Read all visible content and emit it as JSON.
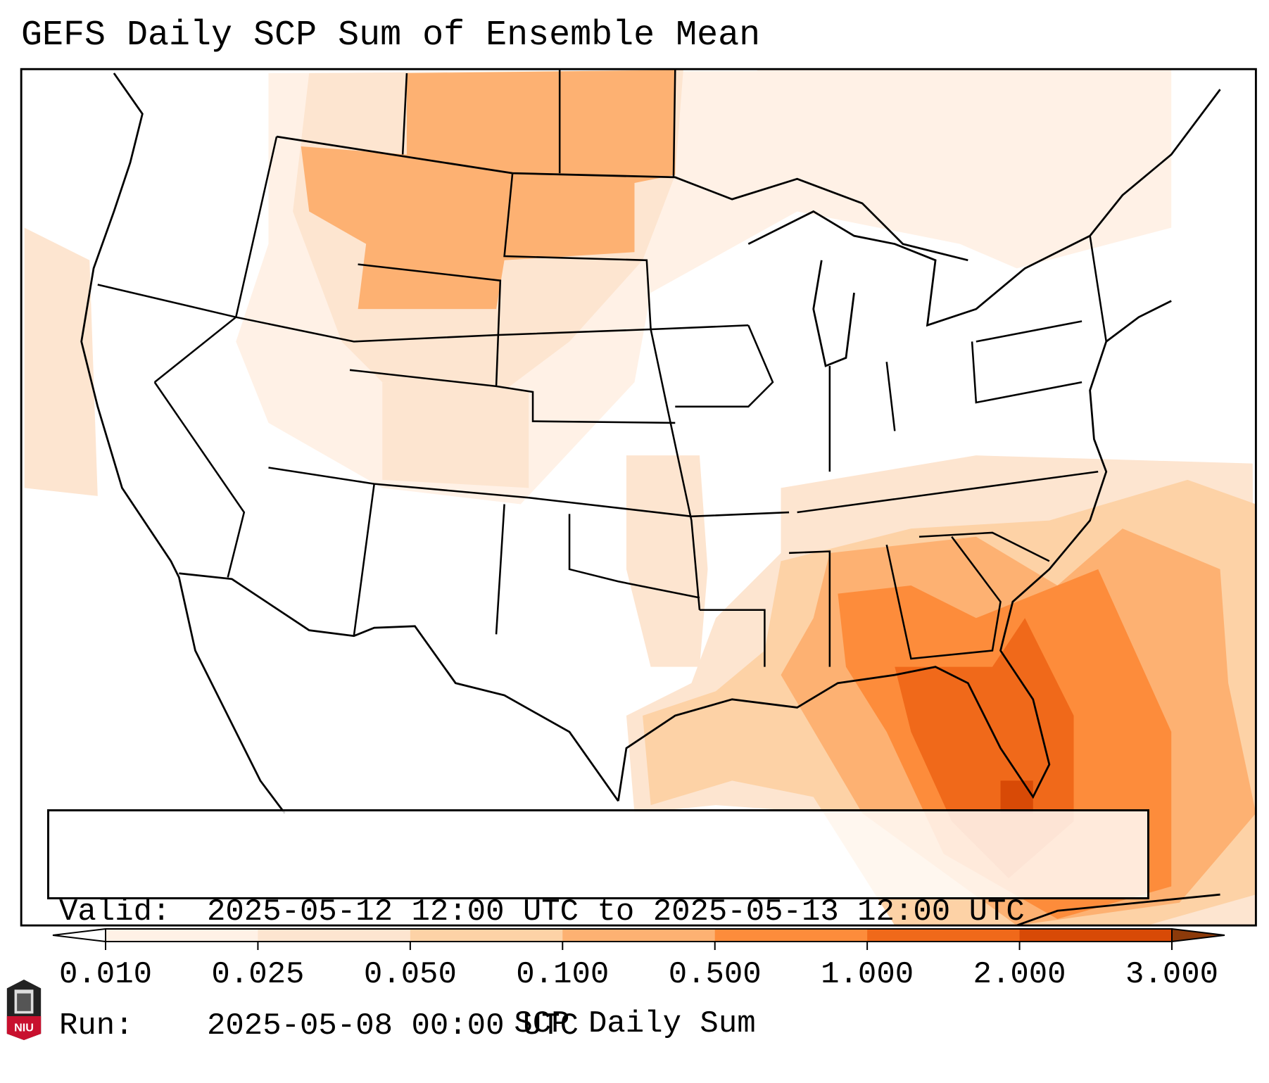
{
  "title": "GEFS Daily SCP Sum of Ensemble Mean",
  "info": {
    "valid_label": "Valid:",
    "valid_value": "2025-05-12 12:00 UTC to 2025-05-13 12:00 UTC",
    "run_label": "Run:",
    "run_value": "2025-05-08 00:00 UTC"
  },
  "colorbar": {
    "label": "SCP Daily Sum",
    "ticks": [
      "0.010",
      "0.025",
      "0.050",
      "0.100",
      "0.500",
      "1.000",
      "2.000",
      "3.000"
    ],
    "under_color": "#ffffff",
    "bin_colors": [
      "#fff1e6",
      "#fde5d0",
      "#fdd2a6",
      "#fdb172",
      "#fd8c3b",
      "#f0691a",
      "#d84a06"
    ],
    "over_color": "#8c3a0a"
  },
  "logo": {
    "text": "NIU",
    "color": "#c8102e"
  }
}
